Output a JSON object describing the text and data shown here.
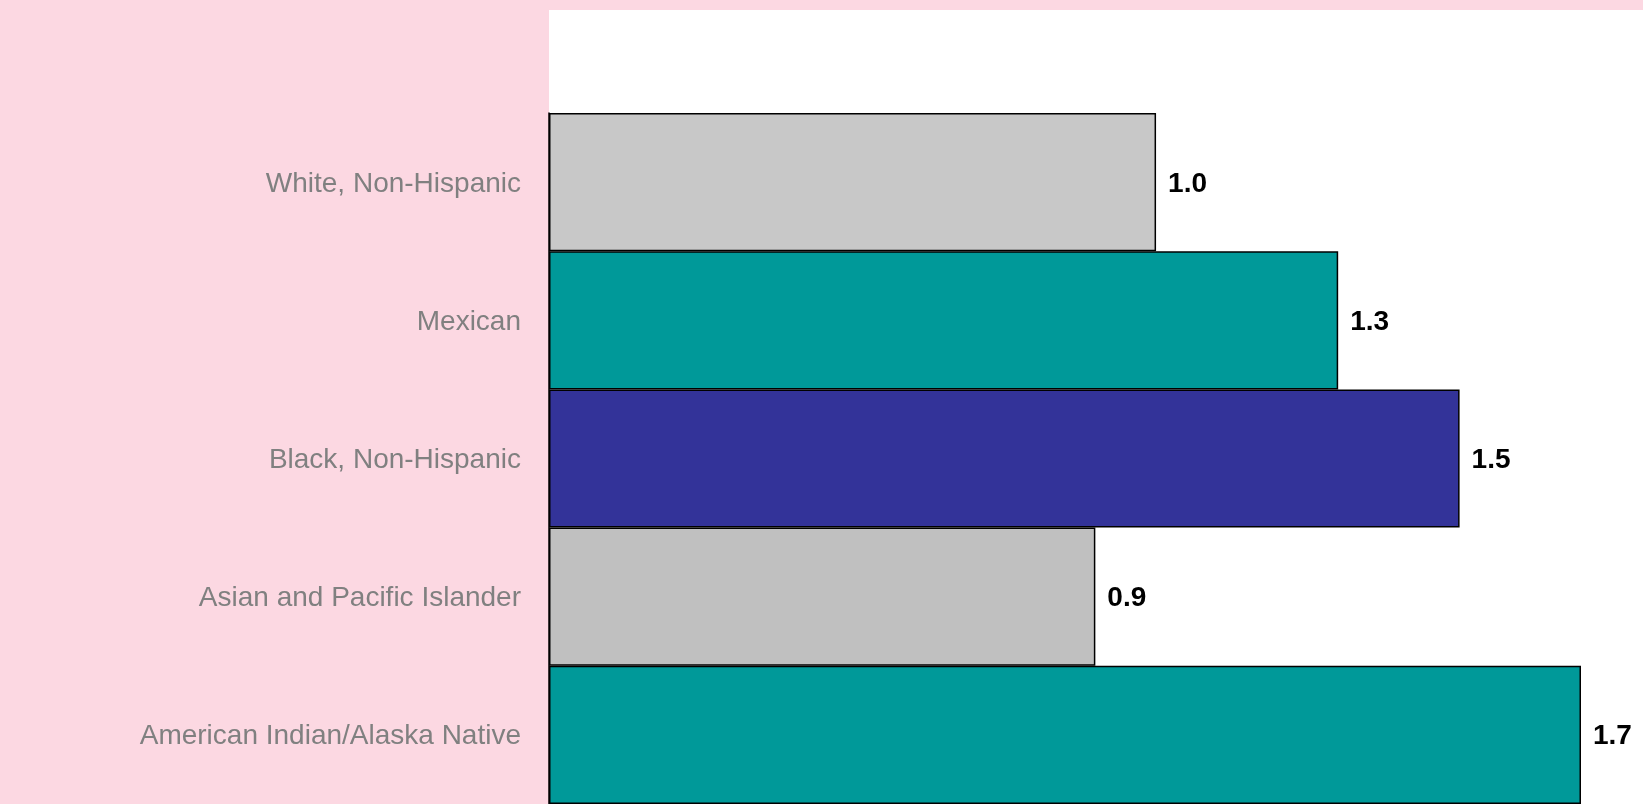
{
  "chart_data": {
    "type": "bar",
    "orientation": "horizontal",
    "categories": [
      "White, Non-Hispanic",
      "Mexican",
      "Black, Non-Hispanic",
      "Asian and Pacific Islander",
      "American Indian/Alaska Native"
    ],
    "values": [
      1.0,
      1.3,
      1.5,
      0.9,
      1.7
    ],
    "value_labels": [
      "1.0",
      "1.3",
      "1.5",
      "0.9",
      "1.7"
    ],
    "colors": [
      "#c8c8c8",
      "#009999",
      "#333399",
      "#c0c0c0",
      "#009999"
    ]
  }
}
